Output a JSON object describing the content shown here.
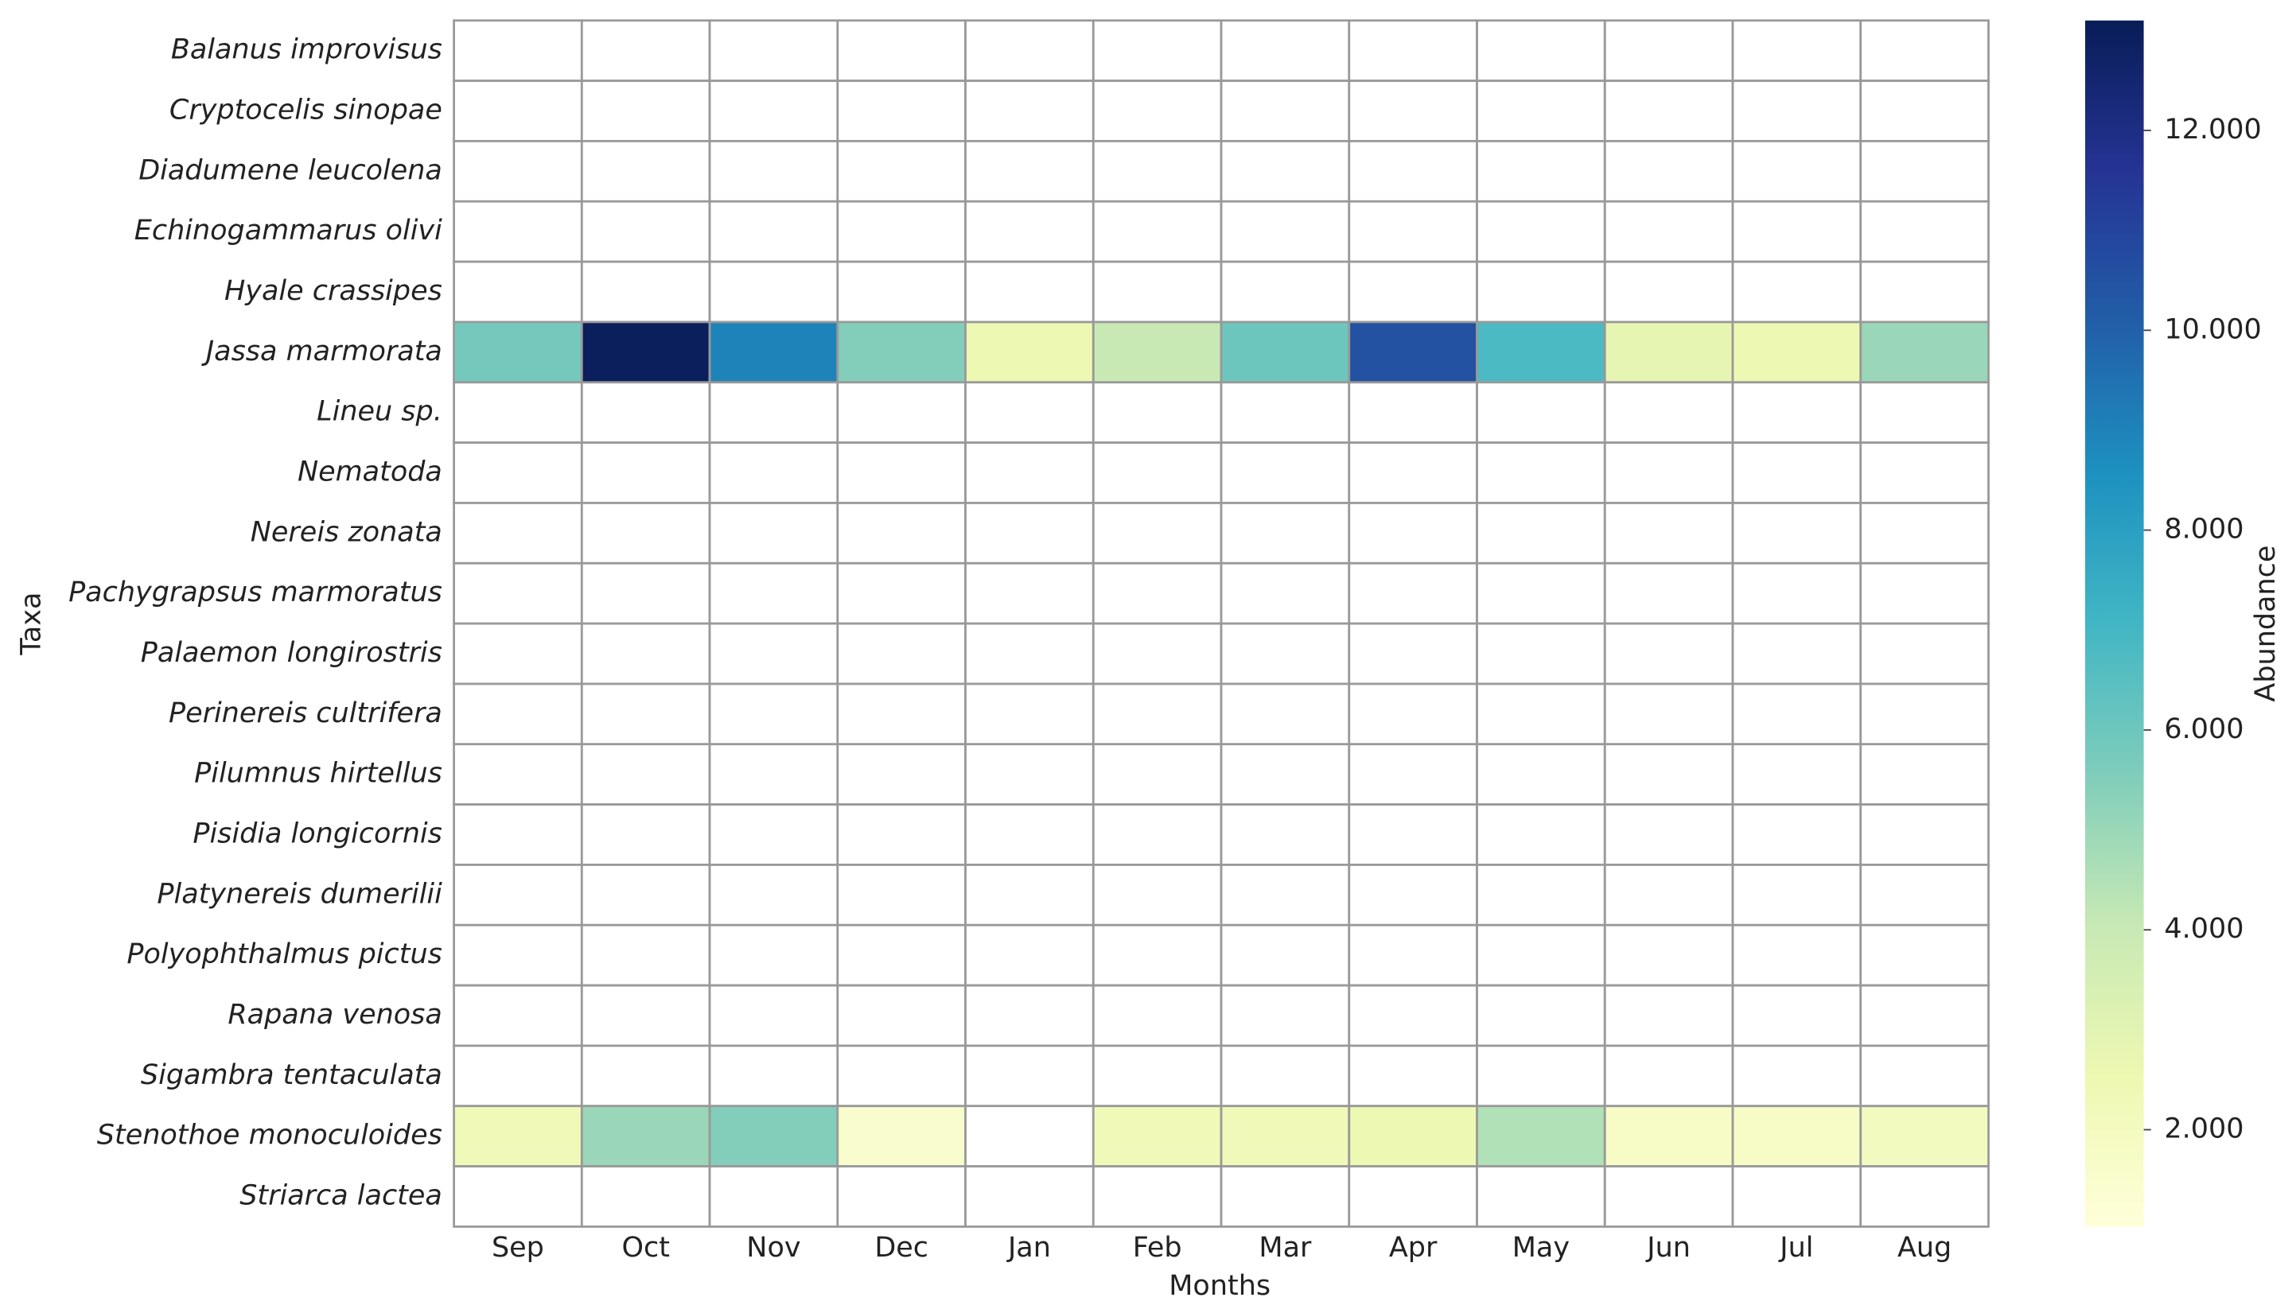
{
  "chart_data": {
    "type": "heatmap",
    "x_label": "Months",
    "y_label": "Taxa",
    "colorbar_label": "Abundance",
    "colormap": "YlGnBu",
    "categories": [
      "Sep",
      "Oct",
      "Nov",
      "Dec",
      "Jan",
      "Feb",
      "Mar",
      "Apr",
      "May",
      "Jun",
      "Jul",
      "Aug"
    ],
    "rows": [
      "Balanus improvisus",
      "Cryptocelis sinopae",
      "Diadumene leucolena",
      "Echinogammarus olivi",
      "Hyale crassipes",
      "Jassa marmorata",
      "Lineu sp.",
      "Nematoda",
      "Nereis zonata",
      "Pachygrapsus marmoratus",
      "Palaemon longirostris",
      "Perinereis cultrifera",
      "Pilumnus hirtellus",
      "Pisidia longicornis",
      "Platynereis dumerilii",
      "Polyophthalmus pictus",
      "Rapana venosa",
      "Sigambra tentaculata",
      "Stenothoe monoculoides",
      "Striarca lactea"
    ],
    "values": [
      [
        null,
        null,
        null,
        null,
        null,
        null,
        null,
        null,
        null,
        null,
        null,
        null
      ],
      [
        null,
        null,
        null,
        null,
        null,
        null,
        null,
        null,
        null,
        null,
        null,
        null
      ],
      [
        null,
        null,
        null,
        null,
        null,
        null,
        null,
        null,
        null,
        null,
        null,
        null
      ],
      [
        null,
        null,
        null,
        null,
        null,
        null,
        null,
        null,
        null,
        null,
        null,
        null
      ],
      [
        null,
        null,
        null,
        null,
        null,
        null,
        null,
        null,
        null,
        null,
        null,
        null
      ],
      [
        5800,
        13000,
        9000,
        5500,
        2500,
        4000,
        6000,
        10500,
        6800,
        2800,
        2500,
        5000
      ],
      [
        null,
        null,
        null,
        null,
        null,
        null,
        null,
        null,
        null,
        null,
        null,
        null
      ],
      [
        null,
        null,
        null,
        null,
        null,
        null,
        null,
        null,
        null,
        null,
        null,
        null
      ],
      [
        null,
        null,
        null,
        null,
        null,
        null,
        null,
        null,
        null,
        null,
        null,
        null
      ],
      [
        null,
        null,
        null,
        null,
        null,
        null,
        null,
        null,
        null,
        null,
        null,
        null
      ],
      [
        null,
        null,
        null,
        null,
        null,
        null,
        null,
        null,
        null,
        null,
        null,
        null
      ],
      [
        null,
        null,
        null,
        null,
        null,
        null,
        null,
        null,
        null,
        null,
        null,
        null
      ],
      [
        null,
        null,
        null,
        null,
        null,
        null,
        null,
        null,
        null,
        null,
        null,
        null
      ],
      [
        null,
        null,
        null,
        null,
        null,
        null,
        null,
        null,
        null,
        null,
        null,
        null
      ],
      [
        null,
        null,
        null,
        null,
        null,
        null,
        null,
        null,
        null,
        null,
        null,
        null
      ],
      [
        null,
        null,
        null,
        null,
        null,
        null,
        null,
        null,
        null,
        null,
        null,
        null
      ],
      [
        null,
        null,
        null,
        null,
        null,
        null,
        null,
        null,
        null,
        null,
        null,
        null
      ],
      [
        null,
        null,
        null,
        null,
        null,
        null,
        null,
        null,
        null,
        null,
        null,
        null
      ],
      [
        2300,
        5000,
        5500,
        1500,
        null,
        2300,
        2300,
        2500,
        4500,
        1700,
        1700,
        2000
      ],
      [
        null,
        null,
        null,
        null,
        null,
        null,
        null,
        null,
        null,
        null,
        null,
        null
      ]
    ],
    "clim": [
      1030,
      13100
    ],
    "cticks": [
      {
        "value": 2000,
        "label": "2.000"
      },
      {
        "value": 4000,
        "label": "4.000"
      },
      {
        "value": 6000,
        "label": "6.000"
      },
      {
        "value": 8000,
        "label": "8.000"
      },
      {
        "value": 10000,
        "label": "10.000"
      },
      {
        "value": 12000,
        "label": "12.000"
      }
    ]
  }
}
